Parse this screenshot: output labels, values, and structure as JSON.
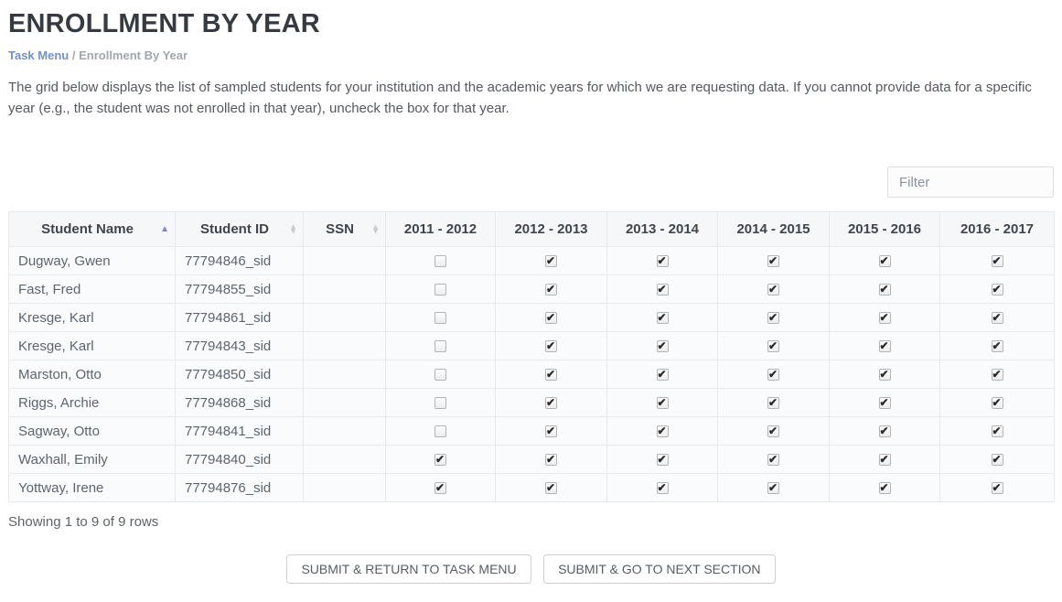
{
  "page": {
    "title": "ENROLLMENT BY YEAR",
    "breadcrumb": {
      "link": "Task Menu",
      "separator": "/",
      "current": "Enrollment By Year"
    },
    "description": "The grid below displays the list of sampled students for your institution and the academic years for which we are requesting data. If you cannot provide data for a specific year (e.g., the student was not enrolled in that year), uncheck the box for that year.",
    "filter": {
      "placeholder": "Filter",
      "value": ""
    }
  },
  "icons": {
    "sort_asc": "▲",
    "sort_up": "▲",
    "sort_down": "▼"
  },
  "colors": {
    "accent_sort_active": "#7b82d6",
    "sort_inactive": "#c9cdd2",
    "breadcrumb_link": "#7290ca",
    "title_text": "#353b41"
  },
  "table": {
    "columns": [
      {
        "label": "Student Name",
        "sortable": true,
        "sort": "asc"
      },
      {
        "label": "Student ID",
        "sortable": true,
        "sort": "none"
      },
      {
        "label": "SSN",
        "sortable": true,
        "sort": "none"
      },
      {
        "label": "2011 - 2012",
        "sortable": false
      },
      {
        "label": "2012 - 2013",
        "sortable": false
      },
      {
        "label": "2013 - 2014",
        "sortable": false
      },
      {
        "label": "2014 - 2015",
        "sortable": false
      },
      {
        "label": "2015 - 2016",
        "sortable": false
      },
      {
        "label": "2016 - 2017",
        "sortable": false
      }
    ],
    "rows": [
      {
        "name": "Dugway, Gwen",
        "id": "77794846_sid",
        "ssn": "",
        "years": [
          false,
          true,
          true,
          true,
          true,
          true
        ]
      },
      {
        "name": "Fast, Fred",
        "id": "77794855_sid",
        "ssn": "",
        "years": [
          false,
          true,
          true,
          true,
          true,
          true
        ]
      },
      {
        "name": "Kresge, Karl",
        "id": "77794861_sid",
        "ssn": "",
        "years": [
          false,
          true,
          true,
          true,
          true,
          true
        ]
      },
      {
        "name": "Kresge, Karl",
        "id": "77794843_sid",
        "ssn": "",
        "years": [
          false,
          true,
          true,
          true,
          true,
          true
        ]
      },
      {
        "name": "Marston, Otto",
        "id": "77794850_sid",
        "ssn": "",
        "years": [
          false,
          true,
          true,
          true,
          true,
          true
        ]
      },
      {
        "name": "Riggs, Archie",
        "id": "77794868_sid",
        "ssn": "",
        "years": [
          false,
          true,
          true,
          true,
          true,
          true
        ]
      },
      {
        "name": "Sagway, Otto",
        "id": "77794841_sid",
        "ssn": "",
        "years": [
          false,
          true,
          true,
          true,
          true,
          true
        ]
      },
      {
        "name": "Waxhall, Emily",
        "id": "77794840_sid",
        "ssn": "",
        "years": [
          true,
          true,
          true,
          true,
          true,
          true
        ]
      },
      {
        "name": "Yottway, Irene",
        "id": "77794876_sid",
        "ssn": "",
        "years": [
          true,
          true,
          true,
          true,
          true,
          true
        ]
      }
    ]
  },
  "footer": {
    "showing": "Showing 1 to 9 of 9 rows",
    "submit_return_label": "SUBMIT & RETURN TO TASK MENU",
    "submit_next_label": "SUBMIT & GO TO NEXT SECTION"
  }
}
